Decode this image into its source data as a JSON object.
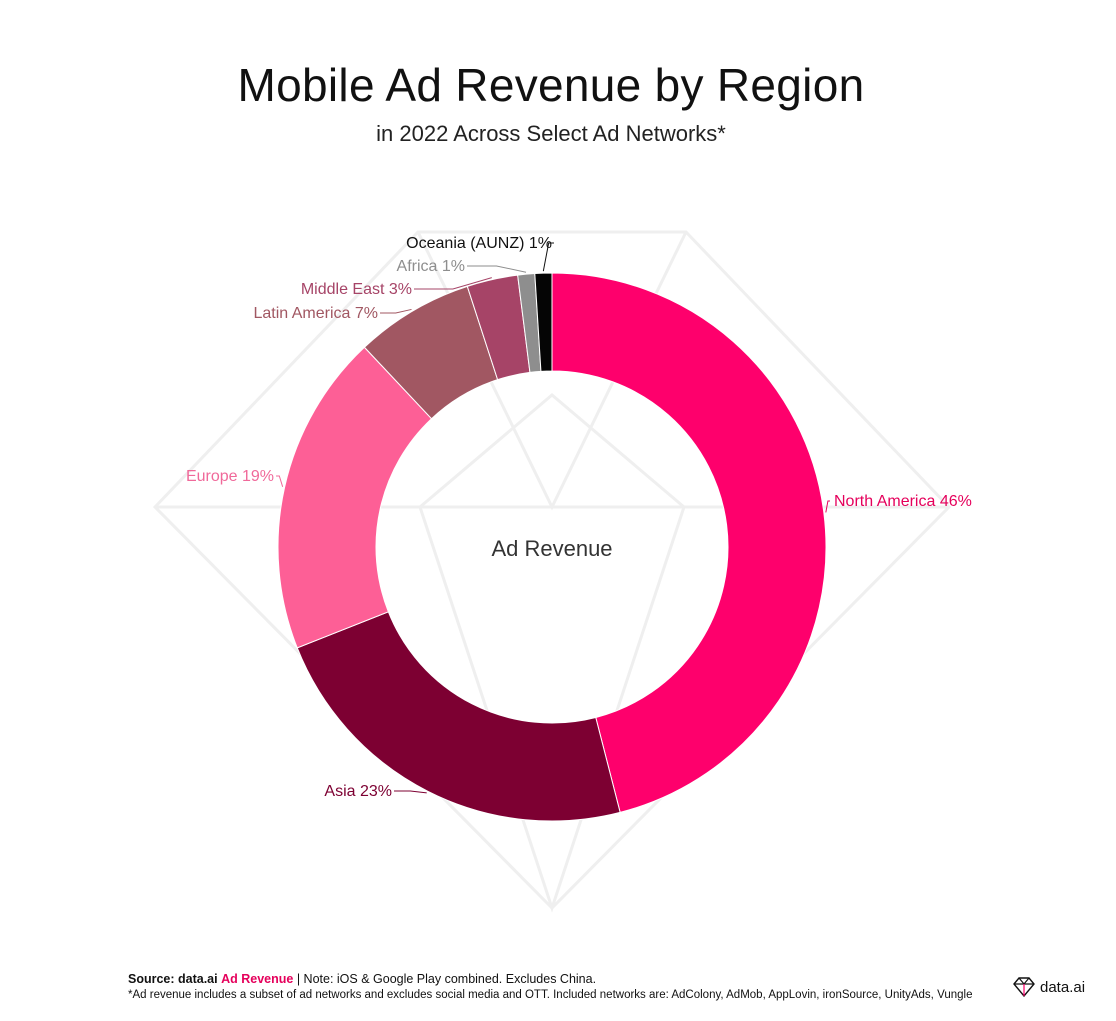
{
  "chart_data": {
    "type": "pie",
    "title": "Mobile Ad Revenue by Region",
    "subtitle": "in 2022 Across Select Ad Networks*",
    "center_label": "Ad Revenue",
    "donut": true,
    "slices": [
      {
        "name": "North America",
        "value": 46,
        "label": "North America 46%",
        "color": "#fe006c",
        "label_color": "#e5005b"
      },
      {
        "name": "Asia",
        "value": 23,
        "label": "Asia 23%",
        "color": "#7d0032",
        "label_color": "#7d0032"
      },
      {
        "name": "Europe",
        "value": 19,
        "label": "Europe 19%",
        "color": "#fd5f96",
        "label_color": "#f0699a"
      },
      {
        "name": "Latin America",
        "value": 7,
        "label": "Latin America 7%",
        "color": "#a15762",
        "label_color": "#a15762"
      },
      {
        "name": "Middle East",
        "value": 3,
        "label": "Middle East 3%",
        "color": "#a64467",
        "label_color": "#a64467"
      },
      {
        "name": "Africa",
        "value": 1,
        "label": "Africa 1%",
        "color": "#8e8e8e",
        "label_color": "#8e8e8e"
      },
      {
        "name": "Oceania (AUNZ)",
        "value": 1,
        "label": "Oceania (AUNZ) 1%",
        "color": "#050505",
        "label_color": "#111111"
      }
    ]
  },
  "footer": {
    "source_label": "Source: data.ai",
    "source_link": "Ad Revenue",
    "note": " | Note: iOS & Google Play combined. Excludes China.",
    "footnote": "*Ad revenue includes a subset of ad networks and excludes social media and OTT.  Included networks are: AdColony, AdMob, AppLovin, ironSource, UnityAds, Vungle"
  },
  "brand": {
    "name": "data.ai",
    "icon": "diamond-logo-icon"
  }
}
